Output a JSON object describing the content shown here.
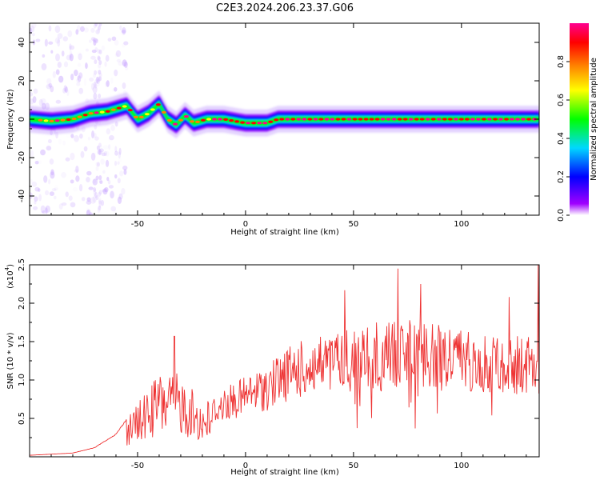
{
  "title": "C2E3.2024.206.23.37.G06",
  "chart_data": [
    {
      "type": "heatmap",
      "xlabel": "Height of straight line (km)",
      "ylabel": "Frequency (Hz)",
      "xlim": [
        -100,
        136
      ],
      "ylim": [
        -50,
        50
      ],
      "x_ticks": [
        -50,
        0,
        50,
        100
      ],
      "y_ticks": [
        -40,
        -20,
        0,
        20,
        40
      ],
      "colorbar": {
        "label": "Normalized spectral amplitude",
        "range": [
          0,
          1
        ],
        "ticks": [
          0.0,
          0.2,
          0.4,
          0.6,
          0.8
        ],
        "colors": [
          "#ffffff",
          "#8a00ff",
          "#0000ff",
          "#00d8ff",
          "#00ff00",
          "#ffff00",
          "#ff8000",
          "#ff0000",
          "#ff0080"
        ]
      },
      "ridge": [
        {
          "x": -100,
          "f": 0
        },
        {
          "x": -90,
          "f": -1
        },
        {
          "x": -80,
          "f": 0
        },
        {
          "x": -72,
          "f": 3
        },
        {
          "x": -64,
          "f": 4
        },
        {
          "x": -55,
          "f": 7
        },
        {
          "x": -50,
          "f": 0
        },
        {
          "x": -45,
          "f": 3
        },
        {
          "x": -40,
          "f": 8
        },
        {
          "x": -36,
          "f": 0
        },
        {
          "x": -32,
          "f": -3
        },
        {
          "x": -28,
          "f": 2
        },
        {
          "x": -24,
          "f": -2
        },
        {
          "x": -18,
          "f": 0
        },
        {
          "x": -10,
          "f": 0
        },
        {
          "x": 0,
          "f": -2
        },
        {
          "x": 10,
          "f": -2
        },
        {
          "x": 15,
          "f": 0
        },
        {
          "x": 136,
          "f": 0
        }
      ]
    },
    {
      "type": "line",
      "xlabel": "Height of straight line (km)",
      "ylabel": "SNR (10 * v/v)",
      "y_scale_note": "(x10",
      "y_scale_exp": "4",
      "y_scale_close": ")",
      "xlim": [
        -100,
        136
      ],
      "ylim": [
        0,
        2.5
      ],
      "x_ticks": [
        -50,
        0,
        50,
        100
      ],
      "y_ticks": [
        0.5,
        1.0,
        1.5,
        2.0,
        2.5
      ],
      "color": "#ee3333",
      "envelope": [
        {
          "x": -100,
          "y": 0.02
        },
        {
          "x": -80,
          "y": 0.05
        },
        {
          "x": -70,
          "y": 0.12
        },
        {
          "x": -60,
          "y": 0.3
        },
        {
          "x": -50,
          "y": 0.7
        },
        {
          "x": -40,
          "y": 1.1
        },
        {
          "x": -30,
          "y": 1.1
        },
        {
          "x": -20,
          "y": 0.7
        },
        {
          "x": -10,
          "y": 0.9
        },
        {
          "x": 0,
          "y": 1.05
        },
        {
          "x": 10,
          "y": 1.2
        },
        {
          "x": 20,
          "y": 1.45
        },
        {
          "x": 30,
          "y": 1.55
        },
        {
          "x": 40,
          "y": 1.6
        },
        {
          "x": 50,
          "y": 1.7
        },
        {
          "x": 60,
          "y": 1.75
        },
        {
          "x": 70,
          "y": 1.85
        },
        {
          "x": 80,
          "y": 1.8
        },
        {
          "x": 90,
          "y": 1.75
        },
        {
          "x": 100,
          "y": 1.7
        },
        {
          "x": 110,
          "y": 1.65
        },
        {
          "x": 120,
          "y": 1.6
        },
        {
          "x": 130,
          "y": 1.6
        },
        {
          "x": 136,
          "y": 1.7
        }
      ],
      "peaks": [
        {
          "x": 70.5,
          "y": 2.45
        },
        {
          "x": -33,
          "y": 1.57
        },
        {
          "x": 135.5,
          "y": 2.5
        },
        {
          "x": 81,
          "y": 2.25
        },
        {
          "x": 46,
          "y": 2.17
        },
        {
          "x": 122,
          "y": 2.08
        }
      ]
    }
  ]
}
